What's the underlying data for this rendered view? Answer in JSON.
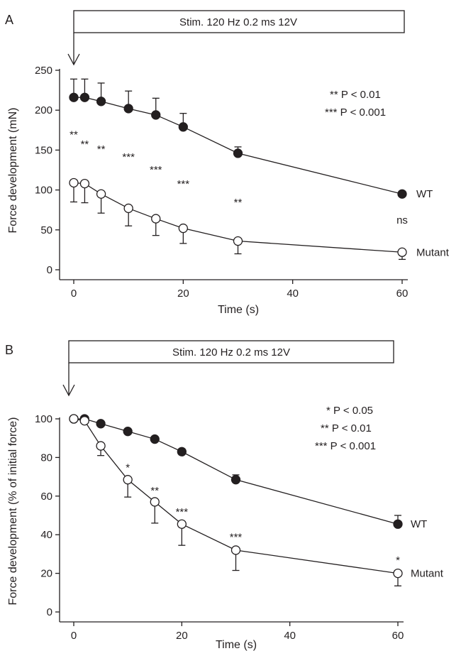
{
  "chart_data": [
    {
      "type": "line",
      "panel_label": "A",
      "stimulus_label": "Stim. 120 Hz 0.2 ms 12V",
      "xlabel": "Time (s)",
      "ylabel": "Force development (mN)",
      "xlim": [
        0,
        60
      ],
      "ylim": [
        0,
        250
      ],
      "xticks": [
        0,
        20,
        40,
        60
      ],
      "yticks": [
        0,
        50,
        100,
        150,
        200,
        250
      ],
      "legend": [
        "** P < 0.01",
        "*** P < 0.001"
      ],
      "series": [
        {
          "name": "WT",
          "marker": "filled",
          "x": [
            0,
            2,
            5,
            10,
            15,
            20,
            30,
            60
          ],
          "y": [
            216,
            216,
            211,
            202,
            194,
            179,
            146,
            95
          ],
          "err": [
            23,
            23,
            23,
            22,
            21,
            17,
            8,
            3
          ]
        },
        {
          "name": "Mutant",
          "marker": "open",
          "x": [
            0,
            2,
            5,
            10,
            15,
            20,
            30,
            60
          ],
          "y": [
            109,
            108,
            95,
            77,
            64,
            52,
            36,
            22
          ],
          "err": [
            24,
            24,
            24,
            22,
            21,
            19,
            16,
            9
          ]
        }
      ],
      "significance": [
        {
          "x": 0,
          "y": 165,
          "text": "**"
        },
        {
          "x": 2,
          "y": 153,
          "text": "**"
        },
        {
          "x": 5,
          "y": 147,
          "text": "**"
        },
        {
          "x": 10,
          "y": 137,
          "text": "***"
        },
        {
          "x": 15,
          "y": 121,
          "text": "***"
        },
        {
          "x": 20,
          "y": 103,
          "text": "***"
        },
        {
          "x": 30,
          "y": 80,
          "text": "**"
        },
        {
          "x": 60,
          "y": 58,
          "text": "ns"
        }
      ]
    },
    {
      "type": "line",
      "panel_label": "B",
      "stimulus_label": "Stim. 120 Hz 0.2 ms 12V",
      "xlabel": "Time (s)",
      "ylabel": "Force development (% of initial force)",
      "xlim": [
        0,
        60
      ],
      "ylim": [
        0,
        100
      ],
      "xticks": [
        0,
        20,
        40,
        60
      ],
      "yticks": [
        0,
        20,
        40,
        60,
        80,
        100
      ],
      "legend": [
        "* P < 0.05",
        "** P < 0.01",
        "*** P < 0.001"
      ],
      "series": [
        {
          "name": "WT",
          "marker": "filled",
          "x": [
            0,
            2,
            5,
            10,
            15,
            20,
            30,
            60
          ],
          "y": [
            100,
            100,
            97.5,
            93.5,
            89.5,
            83,
            68.5,
            45.5
          ],
          "err": [
            0,
            0,
            0,
            0,
            0,
            0,
            2.5,
            4.5
          ]
        },
        {
          "name": "Mutant",
          "marker": "open",
          "x": [
            0,
            2,
            5,
            10,
            15,
            20,
            30,
            60
          ],
          "y": [
            100,
            99,
            86,
            68.5,
            57,
            45.5,
            32,
            20
          ],
          "err": [
            0,
            0,
            5,
            9,
            11,
            11,
            10.5,
            6.5
          ]
        }
      ],
      "significance": [
        {
          "x": 10,
          "y": 73,
          "text": "*"
        },
        {
          "x": 15,
          "y": 61,
          "text": "**"
        },
        {
          "x": 20,
          "y": 50,
          "text": "***"
        },
        {
          "x": 30,
          "y": 37,
          "text": "***"
        },
        {
          "x": 60,
          "y": 25,
          "text": "*"
        }
      ]
    }
  ]
}
